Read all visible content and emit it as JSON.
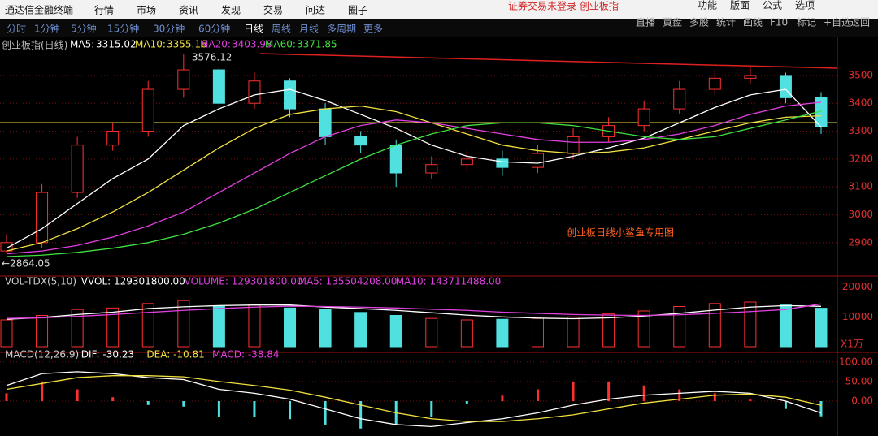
{
  "menu": [
    "通达信金融终端",
    "行情",
    "市场",
    "资讯",
    "发现",
    "交易",
    "问达",
    "圈子"
  ],
  "menu_right": [
    "功能",
    "版面",
    "公式",
    "选项"
  ],
  "banner": "证券交易未登录  创业板指",
  "periods": [
    "分时",
    "1分钟",
    "5分钟",
    "15分钟",
    "30分钟",
    "60分钟",
    "日线",
    "周线",
    "月线",
    "多周期",
    "更多"
  ],
  "tools": [
    "直播",
    "買盘",
    "多股",
    "统计",
    "画线",
    "F10",
    "标记",
    "+自选",
    "返回"
  ],
  "chart_data": [
    {
      "type": "candlestick",
      "title": "创业板指(日线)",
      "open": [
        2870,
        2900,
        3080,
        3250,
        3300,
        3450,
        3520,
        3400,
        3480,
        3380,
        3280,
        3250,
        3150,
        3180,
        3200,
        3170,
        3220,
        3280,
        3320,
        3380,
        3450,
        3490,
        3500,
        3420
      ],
      "high": [
        2930,
        3110,
        3280,
        3330,
        3480,
        3576.12,
        3530,
        3510,
        3490,
        3400,
        3300,
        3270,
        3210,
        3230,
        3230,
        3250,
        3310,
        3350,
        3410,
        3480,
        3520,
        3530,
        3510,
        3440
      ],
      "low": [
        2864.05,
        2880,
        3060,
        3230,
        3280,
        3420,
        3380,
        3380,
        3350,
        3250,
        3220,
        3100,
        3130,
        3160,
        3140,
        3150,
        3200,
        3260,
        3300,
        3360,
        3430,
        3470,
        3400,
        3290
      ],
      "close": [
        2900,
        3080,
        3250,
        3300,
        3450,
        3520,
        3400,
        3480,
        3380,
        3280,
        3250,
        3150,
        3180,
        3200,
        3170,
        3220,
        3280,
        3320,
        3380,
        3450,
        3490,
        3500,
        3420,
        3315
      ],
      "series": [
        {
          "name": "MA5:",
          "color": "#ffffff",
          "values": [
            2880,
            2950,
            3040,
            3130,
            3200,
            3320,
            3380,
            3430,
            3450,
            3410,
            3360,
            3310,
            3250,
            3210,
            3190,
            3185,
            3210,
            3240,
            3275,
            3330,
            3385,
            3430,
            3450,
            3315.02
          ]
        },
        {
          "name": "MA10:",
          "color": "#f0e040",
          "values": [
            2870,
            2900,
            2950,
            3010,
            3080,
            3160,
            3240,
            3310,
            3360,
            3380,
            3390,
            3370,
            3330,
            3290,
            3250,
            3230,
            3220,
            3225,
            3240,
            3270,
            3300,
            3330,
            3350,
            3355.16
          ]
        },
        {
          "name": "MA20:",
          "color": "#e040e0",
          "values": [
            2860,
            2870,
            2890,
            2920,
            2960,
            3010,
            3080,
            3150,
            3220,
            3280,
            3320,
            3340,
            3330,
            3310,
            3290,
            3270,
            3260,
            3260,
            3270,
            3290,
            3320,
            3360,
            3390,
            3403.98
          ]
        },
        {
          "name": "MA60:",
          "color": "#40e040",
          "values": [
            2850,
            2855,
            2865,
            2880,
            2900,
            2930,
            2970,
            3020,
            3080,
            3140,
            3200,
            3250,
            3290,
            3320,
            3330,
            3330,
            3320,
            3300,
            3280,
            3270,
            3280,
            3310,
            3340,
            3371.85
          ]
        }
      ],
      "hline": 3330,
      "high_label": "3576.12",
      "low_label": "←2864.05",
      "annotation": "创业板日线小鲨鱼专用图",
      "ylim": [
        2780,
        3590
      ],
      "yticks": [
        2900,
        3000,
        3100,
        3200,
        3300,
        3400,
        3500
      ]
    },
    {
      "type": "volume",
      "header": [
        "VOL-TDX(5,10)",
        "VVOL: 129301800.00",
        "VOLUME: 129301800.00",
        "MA5: 135504208.00",
        "MA10: 143711488.00"
      ],
      "values": [
        9000,
        10500,
        12500,
        13000,
        14500,
        15500,
        13500,
        14000,
        13000,
        12500,
        11500,
        10500,
        9500,
        9000,
        9200,
        9500,
        10000,
        11000,
        12000,
        13500,
        14500,
        15000,
        14000,
        12930.18
      ],
      "series": [
        {
          "name": "MA5",
          "color": "#ffffff",
          "values": [
            9200,
            9800,
            10800,
            11600,
            12800,
            13400,
            13800,
            14000,
            14000,
            13300,
            12800,
            12200,
            11400,
            10600,
            10000,
            9600,
            9400,
            9700,
            10300,
            11200,
            12300,
            13300,
            13800,
            13550.42
          ]
        },
        {
          "name": "MA10",
          "color": "#e040e0",
          "values": [
            9500,
            9700,
            10200,
            10800,
            11500,
            12200,
            12800,
            13300,
            13600,
            13500,
            13300,
            13000,
            12600,
            12200,
            11600,
            11200,
            10800,
            10600,
            10500,
            10700,
            11200,
            11800,
            12500,
            14371.15
          ]
        }
      ],
      "unit": "X1万",
      "ylim": [
        0,
        21000
      ],
      "yticks": [
        10000,
        20000
      ]
    },
    {
      "type": "macd",
      "header": [
        "MACD(12,26,9)",
        "DIF: -30.23",
        "DEA: -10.81",
        "MACD: -38.84"
      ],
      "values": [
        20,
        50,
        30,
        10,
        -10,
        -14,
        -40,
        -40,
        -46,
        -60,
        -70,
        -60,
        -40,
        -6,
        14,
        30,
        50,
        50,
        40,
        30,
        20,
        4,
        -20,
        -38.84
      ],
      "series": [
        {
          "name": "DIF",
          "color": "#ffffff",
          "values": [
            40,
            70,
            75,
            70,
            60,
            55,
            30,
            20,
            5,
            -20,
            -45,
            -60,
            -65,
            -55,
            -45,
            -30,
            -10,
            5,
            15,
            20,
            25,
            20,
            0,
            -30.23
          ]
        },
        {
          "name": "DEA",
          "color": "#f0e040",
          "values": [
            30,
            45,
            60,
            65,
            65,
            62,
            50,
            40,
            28,
            10,
            -10,
            -30,
            -45,
            -52,
            -52,
            -45,
            -35,
            -20,
            -5,
            5,
            15,
            18,
            10,
            -10.81
          ]
        }
      ],
      "ylim": [
        -85,
        112
      ],
      "yticks": [
        {
          "value": 0,
          "label": "0.00"
        },
        {
          "value": 50,
          "label": "50.00"
        },
        {
          "value": 100,
          "label": "100.00"
        }
      ]
    }
  ]
}
